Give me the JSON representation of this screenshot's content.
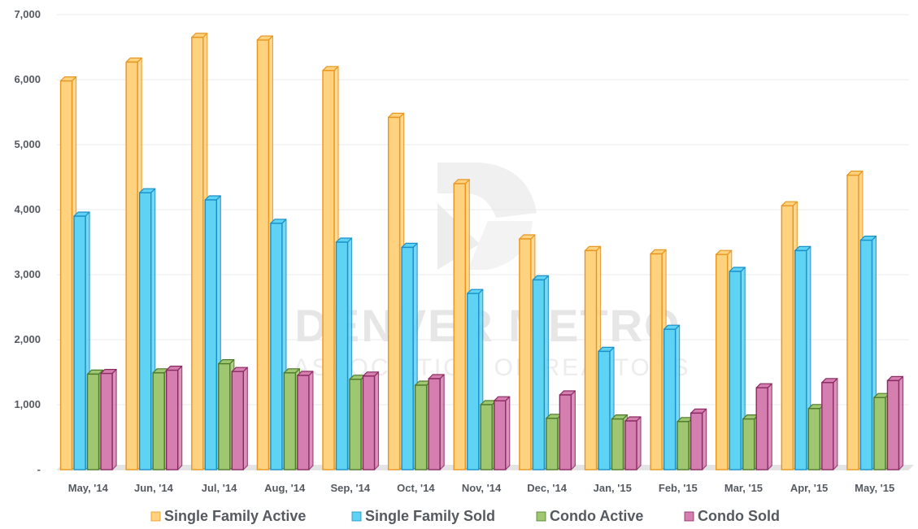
{
  "watermark": {
    "line1": "DENVER METRO",
    "line2": "ASSOCIATION OF REALTORS"
  },
  "chart_data": {
    "type": "bar",
    "title": "",
    "xlabel": "",
    "ylabel": "",
    "ylim": [
      0,
      7000
    ],
    "y_ticks": [
      0,
      1000,
      2000,
      3000,
      4000,
      5000,
      6000,
      7000
    ],
    "y_tick_labels": [
      "-",
      "1,000",
      "2,000",
      "3,000",
      "4,000",
      "5,000",
      "6,000",
      "7,000"
    ],
    "grid": true,
    "legend_position": "bottom",
    "categories": [
      "May, '14",
      "Jun, '14",
      "Jul, '14",
      "Aug, '14",
      "Sep, '14",
      "Oct, '14",
      "Nov, '14",
      "Dec, '14",
      "Jan, '15",
      "Feb, '15",
      "Mar, '15",
      "Apr, '15",
      "May, '15"
    ],
    "series": [
      {
        "name": "Single Family Active",
        "color": "#ffd27f",
        "edge": "#e8951e",
        "values": [
          5980,
          6270,
          6650,
          6610,
          6140,
          5420,
          4400,
          3550,
          3370,
          3320,
          3310,
          4060,
          4530
        ]
      },
      {
        "name": "Single Family Sold",
        "color": "#5fd3f3",
        "edge": "#1a8fc9",
        "values": [
          3900,
          4260,
          4150,
          3790,
          3500,
          3420,
          2710,
          2920,
          1820,
          2160,
          3050,
          3370,
          3530
        ]
      },
      {
        "name": "Condo Active",
        "color": "#9fc670",
        "edge": "#4d7a2a",
        "values": [
          1470,
          1490,
          1630,
          1490,
          1390,
          1300,
          1000,
          790,
          780,
          740,
          780,
          940,
          1110
        ]
      },
      {
        "name": "Condo Sold",
        "color": "#d57fb0",
        "edge": "#8a2a62",
        "values": [
          1480,
          1530,
          1510,
          1450,
          1440,
          1400,
          1060,
          1150,
          750,
          870,
          1260,
          1340,
          1370
        ]
      }
    ]
  }
}
